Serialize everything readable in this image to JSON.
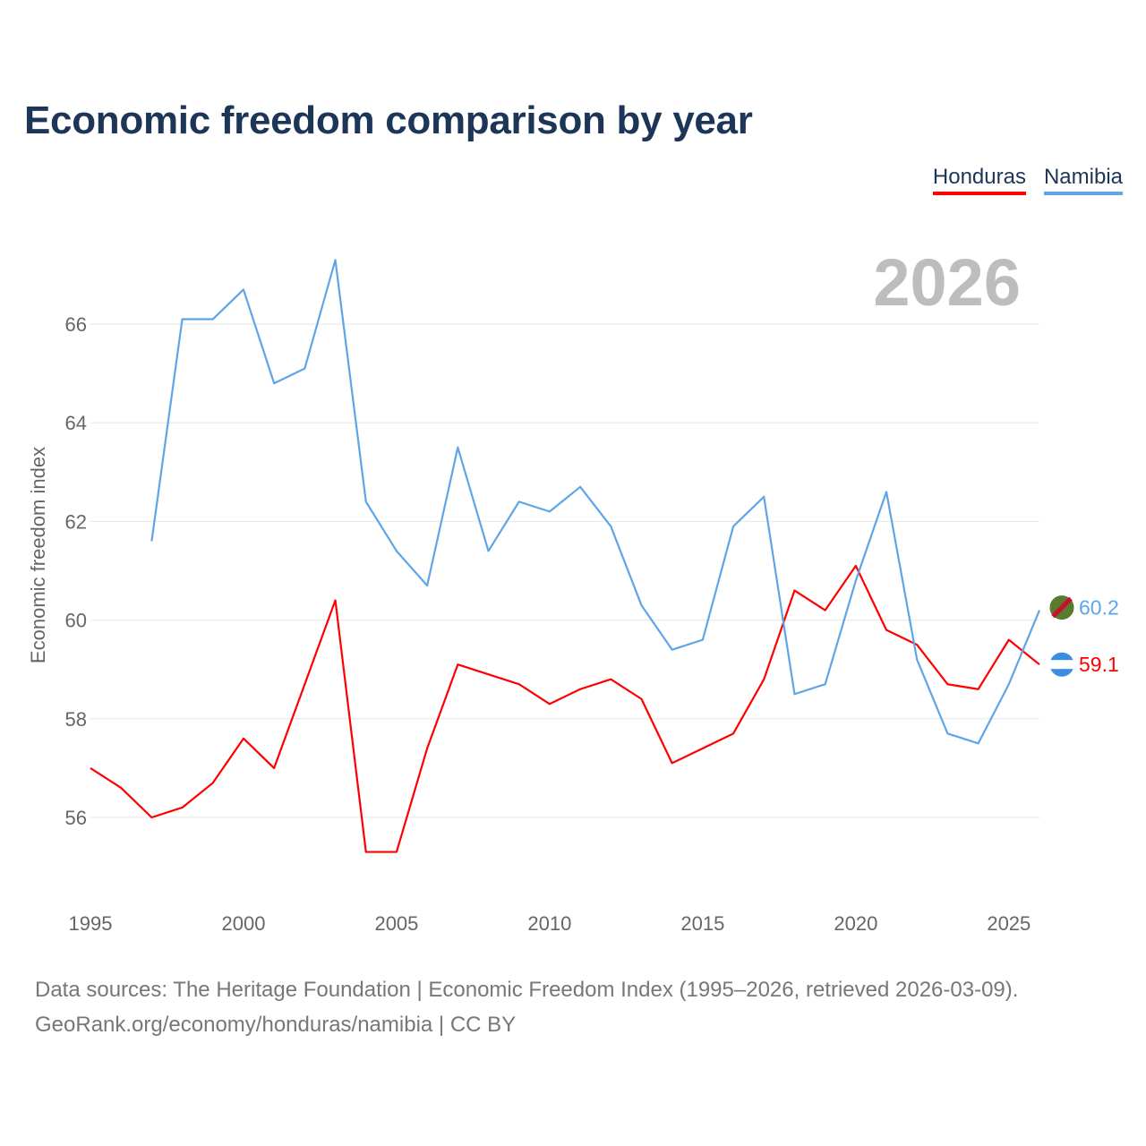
{
  "chart_data": {
    "type": "line",
    "title": "Economic freedom comparison by year",
    "xlabel": "",
    "ylabel": "Economic freedom index",
    "year_label": "2026",
    "xlim": [
      1995,
      2026
    ],
    "ylim": [
      54.8,
      67.6
    ],
    "x_ticks": [
      "1995",
      "2000",
      "2005",
      "2010",
      "2015",
      "2020",
      "2025"
    ],
    "y_ticks": [
      "56",
      "58",
      "60",
      "62",
      "64",
      "66"
    ],
    "grid": true,
    "legend_position": "top-right",
    "series": [
      {
        "name": "Honduras",
        "color": "#ff0000",
        "end_label": "59.1",
        "x": [
          1995,
          1996,
          1997,
          1998,
          1999,
          2000,
          2001,
          2002,
          2003,
          2004,
          2005,
          2006,
          2007,
          2008,
          2009,
          2010,
          2011,
          2012,
          2013,
          2014,
          2015,
          2016,
          2017,
          2018,
          2019,
          2020,
          2021,
          2022,
          2023,
          2024,
          2025,
          2026
        ],
        "values": [
          57.0,
          56.6,
          56.0,
          56.2,
          56.7,
          57.6,
          57.0,
          58.7,
          60.4,
          55.3,
          55.3,
          57.4,
          59.1,
          58.9,
          58.7,
          58.3,
          58.6,
          58.8,
          58.4,
          57.1,
          57.4,
          57.7,
          58.8,
          60.6,
          60.2,
          61.1,
          59.8,
          59.5,
          58.7,
          58.6,
          59.6,
          59.1
        ]
      },
      {
        "name": "Namibia",
        "color": "#5ea5e8",
        "end_label": "60.2",
        "x": [
          1997,
          1998,
          1999,
          2000,
          2001,
          2002,
          2003,
          2004,
          2005,
          2006,
          2007,
          2008,
          2009,
          2010,
          2011,
          2012,
          2013,
          2014,
          2015,
          2016,
          2017,
          2018,
          2019,
          2020,
          2021,
          2022,
          2023,
          2024,
          2025,
          2026
        ],
        "values": [
          61.6,
          66.1,
          66.1,
          66.7,
          64.8,
          65.1,
          67.3,
          62.4,
          61.4,
          60.7,
          63.5,
          61.4,
          62.4,
          62.2,
          62.7,
          61.9,
          60.3,
          59.4,
          59.6,
          61.9,
          62.5,
          58.5,
          58.7,
          60.8,
          62.6,
          59.2,
          57.7,
          57.5,
          58.7,
          60.2
        ]
      }
    ]
  },
  "footer": {
    "line1": "Data sources: The Heritage Foundation | Economic Freedom Index (1995–2026, retrieved 2026-03-09).",
    "line2": "GeoRank.org/economy/honduras/namibia | CC BY"
  }
}
